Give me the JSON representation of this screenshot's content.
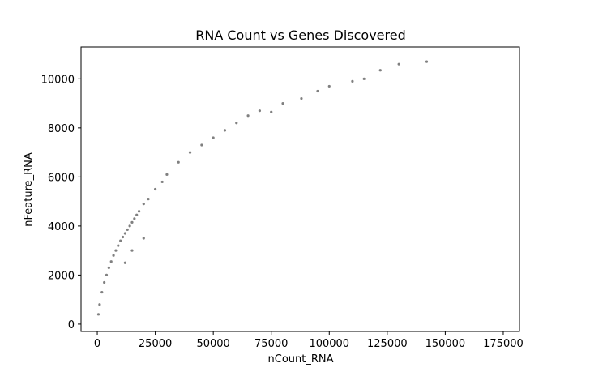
{
  "chart_data": {
    "type": "scatter",
    "title": "RNA Count vs Genes Discovered",
    "xlabel": "nCount_RNA",
    "ylabel": "nFeature_RNA",
    "xlim": [
      -7000,
      182000
    ],
    "ylim": [
      -300,
      11300
    ],
    "xticks": [
      0,
      25000,
      50000,
      75000,
      100000,
      125000,
      150000,
      175000
    ],
    "yticks": [
      0,
      2000,
      4000,
      6000,
      8000,
      10000
    ],
    "marker_color": "#808080",
    "grid": false,
    "legend": "none",
    "series": [
      {
        "points": [
          [
            500,
            400
          ],
          [
            1000,
            800
          ],
          [
            2000,
            1300
          ],
          [
            3000,
            1700
          ],
          [
            4000,
            2000
          ],
          [
            5000,
            2300
          ],
          [
            6000,
            2550
          ],
          [
            7000,
            2800
          ],
          [
            8000,
            3000
          ],
          [
            9000,
            3200
          ],
          [
            10000,
            3400
          ],
          [
            11000,
            3550
          ],
          [
            12000,
            3700
          ],
          [
            13000,
            3850
          ],
          [
            14000,
            4000
          ],
          [
            15000,
            4150
          ],
          [
            16000,
            4300
          ],
          [
            17000,
            4450
          ],
          [
            18000,
            4600
          ],
          [
            20000,
            4900
          ],
          [
            22000,
            5100
          ],
          [
            25000,
            5500
          ],
          [
            28000,
            5800
          ],
          [
            30000,
            6100
          ],
          [
            35000,
            6600
          ],
          [
            40000,
            7000
          ],
          [
            45000,
            7300
          ],
          [
            50000,
            7600
          ],
          [
            55000,
            7900
          ],
          [
            60000,
            8200
          ],
          [
            65000,
            8500
          ],
          [
            70000,
            8700
          ],
          [
            75000,
            8650
          ],
          [
            80000,
            9000
          ],
          [
            88000,
            9200
          ],
          [
            95000,
            9500
          ],
          [
            100000,
            9700
          ],
          [
            110000,
            9900
          ],
          [
            115000,
            10000
          ],
          [
            122000,
            10350
          ],
          [
            130000,
            10600
          ],
          [
            142000,
            10700
          ],
          [
            12000,
            2500
          ],
          [
            15000,
            3000
          ],
          [
            20000,
            3500
          ]
        ]
      }
    ]
  }
}
